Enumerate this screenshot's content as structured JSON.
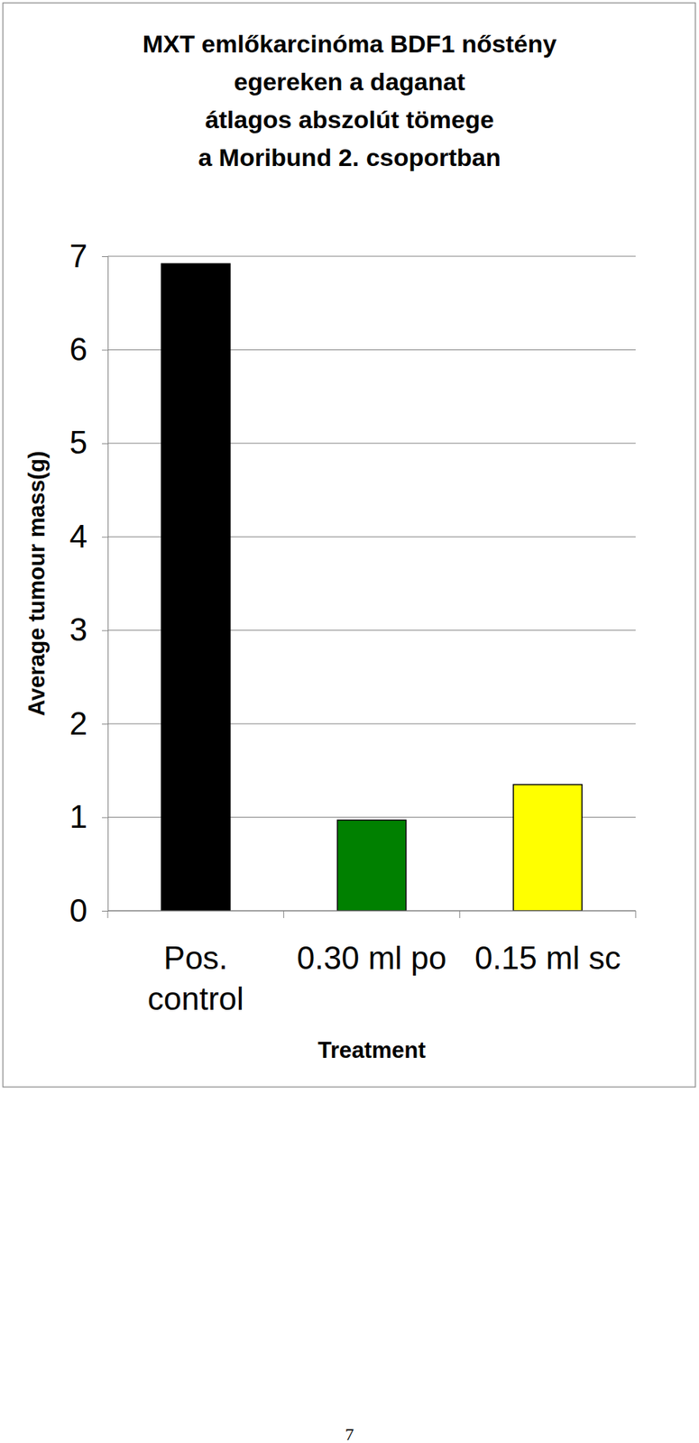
{
  "chart_data": {
    "type": "bar",
    "title": "MXT emlőkarcinóma BDF1 nőstény\negereken a daganat\nátlagos abszolút tömege\na Moribund 2. csoportban",
    "x_label": "Treatment",
    "y_label": "Average tumour mass(g)",
    "categories": [
      "Pos. control",
      "0.30 ml po",
      "0.15 ml sc"
    ],
    "values": [
      6.92,
      0.97,
      1.35
    ],
    "colors": [
      "#000000",
      "#008000",
      "#ffff00"
    ],
    "ylim": [
      0,
      7
    ],
    "yticks": [
      0,
      1,
      2,
      3,
      4,
      5,
      6,
      7
    ],
    "grid": true,
    "annotation": "7"
  }
}
